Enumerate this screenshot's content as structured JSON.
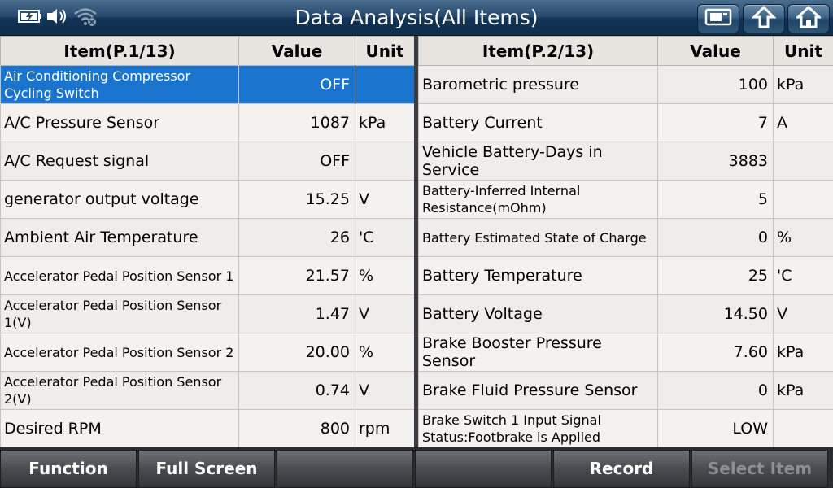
{
  "header": {
    "title": "Data Analysis(All Items)",
    "status_icons": [
      "battery-icon",
      "speaker-icon",
      "wifi-off-icon"
    ],
    "buttons": [
      "screenshot-icon",
      "back-icon",
      "home-icon"
    ]
  },
  "left_table": {
    "headers": {
      "item": "Item(P.1/13)",
      "value": "Value",
      "unit": "Unit"
    },
    "rows": [
      {
        "item": "Air Conditioning Compressor Cycling Switch",
        "value": "OFF",
        "unit": ""
      },
      {
        "item": "A/C Pressure Sensor",
        "value": "1087",
        "unit": "kPa"
      },
      {
        "item": "A/C Request signal",
        "value": "OFF",
        "unit": ""
      },
      {
        "item": "generator output voltage",
        "value": "15.25",
        "unit": "V"
      },
      {
        "item": "Ambient Air Temperature",
        "value": "26",
        "unit": "'C"
      },
      {
        "item": "Accelerator Pedal Position Sensor 1",
        "value": "21.57",
        "unit": "%"
      },
      {
        "item": "Accelerator Pedal Position Sensor 1(V)",
        "value": "1.47",
        "unit": "V"
      },
      {
        "item": "Accelerator Pedal Position Sensor 2",
        "value": "20.00",
        "unit": "%"
      },
      {
        "item": "Accelerator Pedal Position Sensor 2(V)",
        "value": "0.74",
        "unit": "V"
      },
      {
        "item": "Desired RPM",
        "value": "800",
        "unit": "rpm"
      }
    ]
  },
  "right_table": {
    "headers": {
      "item": "Item(P.2/13)",
      "value": "Value",
      "unit": "Unit"
    },
    "rows": [
      {
        "item": "Barometric pressure",
        "value": "100",
        "unit": "kPa"
      },
      {
        "item": "Battery Current",
        "value": "7",
        "unit": "A"
      },
      {
        "item": "Vehicle Battery-Days in Service",
        "value": "3883",
        "unit": ""
      },
      {
        "item": "Battery-Inferred Internal Resistance(mOhm)",
        "value": "5",
        "unit": ""
      },
      {
        "item": "Battery Estimated State of Charge",
        "value": "0",
        "unit": "%"
      },
      {
        "item": "Battery Temperature",
        "value": "25",
        "unit": "'C"
      },
      {
        "item": "Battery Voltage",
        "value": "14.50",
        "unit": "V"
      },
      {
        "item": "Brake Booster Pressure Sensor",
        "value": "7.60",
        "unit": "kPa"
      },
      {
        "item": "Brake Fluid Pressure Sensor",
        "value": "0",
        "unit": "kPa"
      },
      {
        "item": "Brake Switch 1 Input Signal Status:Footbrake is Applied",
        "value": "LOW",
        "unit": ""
      }
    ]
  },
  "footer": {
    "buttons": [
      {
        "label": "Function",
        "enabled": true
      },
      {
        "label": "Full Screen",
        "enabled": true
      },
      {
        "label": "",
        "enabled": true
      },
      {
        "label": "",
        "enabled": true
      },
      {
        "label": "Record",
        "enabled": true
      },
      {
        "label": "Select Item",
        "enabled": false
      }
    ]
  },
  "colors": {
    "selected_row": "#1a73cd",
    "title_bar": "#1d3f62"
  }
}
